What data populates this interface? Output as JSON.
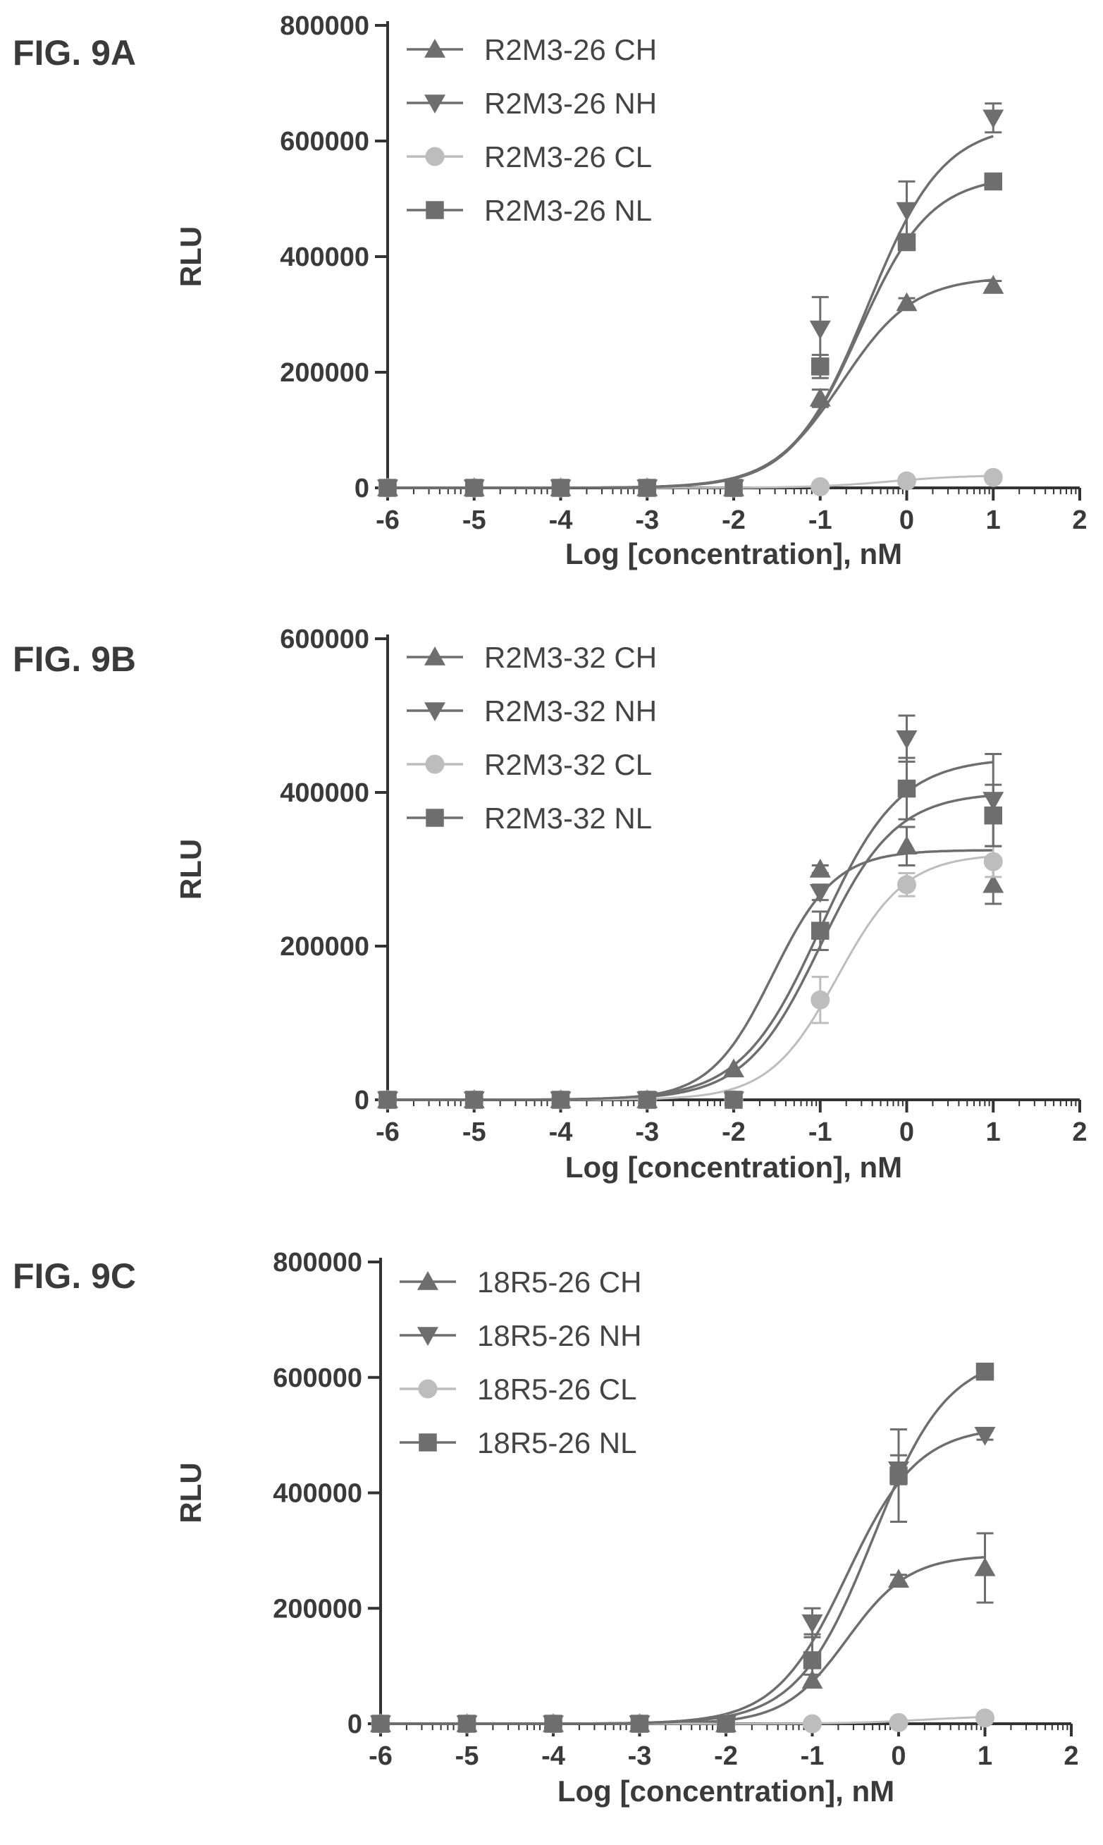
{
  "colors": {
    "axis": "#333333",
    "text": "#3a3a3a",
    "dark_series": "#6e6e6e",
    "light_series": "#bdbdbd"
  },
  "chart_data": [
    {
      "type": "line",
      "panel_label": "FIG. 9A",
      "xlabel": "Log [concentration], nM",
      "ylabel": "RLU",
      "xlim": [
        -6,
        2
      ],
      "ylim": [
        0,
        800000
      ],
      "xticks": [
        "-6",
        "-5",
        "-4",
        "-3",
        "-2",
        "-1",
        "0",
        "1",
        "2"
      ],
      "yticks": [
        "0",
        "200000",
        "400000",
        "600000",
        "800000"
      ],
      "legend_position": "top-left",
      "series": [
        {
          "name": "R2M3-26 CH",
          "marker": "triangle-up",
          "color": "#6e6e6e",
          "x": [
            -6,
            -5,
            -4,
            -3,
            -2,
            -1,
            0,
            1
          ],
          "y": [
            0,
            0,
            0,
            0,
            0,
            155000,
            320000,
            350000
          ],
          "err": [
            0,
            0,
            0,
            0,
            0,
            15000,
            8000,
            8000
          ],
          "fit": {
            "bottom": 0,
            "top": 365000,
            "logec50": -0.75,
            "hill": 1.05
          }
        },
        {
          "name": "R2M3-26 NH",
          "marker": "triangle-down",
          "color": "#6e6e6e",
          "x": [
            -6,
            -5,
            -4,
            -3,
            -2,
            -1,
            0,
            1
          ],
          "y": [
            0,
            0,
            0,
            0,
            0,
            275000,
            480000,
            640000
          ],
          "err": [
            0,
            0,
            0,
            0,
            0,
            55000,
            50000,
            25000
          ],
          "fit": {
            "bottom": 0,
            "top": 630000,
            "logec50": -0.45,
            "hill": 1.0
          }
        },
        {
          "name": "R2M3-26 CL",
          "marker": "circle",
          "color": "#bdbdbd",
          "x": [
            -6,
            -5,
            -4,
            -3,
            -2,
            -1,
            0,
            1
          ],
          "y": [
            0,
            0,
            0,
            0,
            0,
            2000,
            12000,
            18000
          ],
          "err": [
            0,
            0,
            0,
            0,
            0,
            0,
            0,
            0
          ],
          "fit": {
            "bottom": 0,
            "top": 22000,
            "logec50": -0.2,
            "hill": 1.0
          }
        },
        {
          "name": "R2M3-26 NL",
          "marker": "square",
          "color": "#6e6e6e",
          "x": [
            -6,
            -5,
            -4,
            -3,
            -2,
            -1,
            0,
            1
          ],
          "y": [
            0,
            0,
            0,
            0,
            0,
            210000,
            425000,
            530000
          ],
          "err": [
            0,
            0,
            0,
            0,
            0,
            20000,
            8000,
            8000
          ],
          "fit": {
            "bottom": 0,
            "top": 540000,
            "logec50": -0.55,
            "hill": 1.05
          }
        }
      ]
    },
    {
      "type": "line",
      "panel_label": "FIG. 9B",
      "xlabel": "Log [concentration], nM",
      "ylabel": "RLU",
      "xlim": [
        -6,
        2
      ],
      "ylim": [
        0,
        600000
      ],
      "xticks": [
        "-6",
        "-5",
        "-4",
        "-3",
        "-2",
        "-1",
        "0",
        "1",
        "2"
      ],
      "yticks": [
        "0",
        "200000",
        "400000",
        "600000"
      ],
      "legend_position": "top-left",
      "series": [
        {
          "name": "R2M3-32 CH",
          "marker": "triangle-up",
          "color": "#6e6e6e",
          "x": [
            -6,
            -5,
            -4,
            -3,
            -2,
            -1,
            0,
            1
          ],
          "y": [
            0,
            0,
            0,
            0,
            40000,
            300000,
            330000,
            280000
          ],
          "err": [
            0,
            0,
            0,
            0,
            0,
            5000,
            25000,
            25000
          ],
          "fit": {
            "bottom": 0,
            "top": 325000,
            "logec50": -1.55,
            "hill": 1.2
          }
        },
        {
          "name": "R2M3-32 NH",
          "marker": "triangle-down",
          "color": "#6e6e6e",
          "x": [
            -6,
            -5,
            -4,
            -3,
            -2,
            -1,
            0,
            1
          ],
          "y": [
            0,
            0,
            0,
            0,
            0,
            270000,
            470000,
            390000
          ],
          "err": [
            0,
            0,
            0,
            0,
            0,
            10000,
            30000,
            60000
          ],
          "fit": {
            "bottom": 0,
            "top": 400000,
            "logec50": -1.0,
            "hill": 1.0
          }
        },
        {
          "name": "R2M3-32 CL",
          "marker": "circle",
          "color": "#bdbdbd",
          "x": [
            -6,
            -5,
            -4,
            -3,
            -2,
            -1,
            0,
            1
          ],
          "y": [
            0,
            0,
            0,
            0,
            0,
            130000,
            280000,
            310000
          ],
          "err": [
            0,
            0,
            0,
            0,
            0,
            30000,
            15000,
            20000
          ],
          "fit": {
            "bottom": 0,
            "top": 320000,
            "logec50": -0.8,
            "hill": 1.1
          }
        },
        {
          "name": "R2M3-32 NL",
          "marker": "square",
          "color": "#6e6e6e",
          "x": [
            -6,
            -5,
            -4,
            -3,
            -2,
            -1,
            0,
            1
          ],
          "y": [
            0,
            0,
            0,
            0,
            0,
            220000,
            405000,
            370000
          ],
          "err": [
            0,
            0,
            0,
            0,
            0,
            25000,
            40000,
            40000
          ],
          "fit": {
            "bottom": 0,
            "top": 445000,
            "logec50": -1.0,
            "hill": 0.95
          }
        }
      ]
    },
    {
      "type": "line",
      "panel_label": "FIG. 9C",
      "xlabel": "Log [concentration], nM",
      "ylabel": "RLU",
      "xlim": [
        -6,
        2
      ],
      "ylim": [
        0,
        800000
      ],
      "xticks": [
        "-6",
        "-5",
        "-4",
        "-3",
        "-2",
        "-1",
        "0",
        "1",
        "2"
      ],
      "yticks": [
        "0",
        "200000",
        "400000",
        "600000",
        "800000"
      ],
      "legend_position": "top-left",
      "series": [
        {
          "name": "18R5-26 CH",
          "marker": "triangle-up",
          "color": "#6e6e6e",
          "x": [
            -6,
            -5,
            -4,
            -3,
            -2,
            -1,
            0,
            1
          ],
          "y": [
            0,
            0,
            0,
            0,
            0,
            75000,
            250000,
            270000
          ],
          "err": [
            0,
            0,
            0,
            0,
            0,
            10000,
            8000,
            60000
          ],
          "fit": {
            "bottom": 0,
            "top": 292000,
            "logec50": -0.6,
            "hill": 1.2
          }
        },
        {
          "name": "18R5-26 NH",
          "marker": "triangle-down",
          "color": "#6e6e6e",
          "x": [
            -6,
            -5,
            -4,
            -3,
            -2,
            -1,
            0,
            1
          ],
          "y": [
            0,
            0,
            0,
            0,
            0,
            175000,
            440000,
            500000
          ],
          "err": [
            0,
            0,
            0,
            0,
            0,
            25000,
            25000,
            8000
          ],
          "fit": {
            "bottom": 0,
            "top": 515000,
            "logec50": -0.6,
            "hill": 1.05
          }
        },
        {
          "name": "18R5-26 CL",
          "marker": "circle",
          "color": "#bdbdbd",
          "x": [
            -6,
            -5,
            -4,
            -3,
            -2,
            -1,
            0,
            1
          ],
          "y": [
            0,
            0,
            0,
            0,
            0,
            0,
            2000,
            10000
          ],
          "err": [
            0,
            0,
            0,
            0,
            0,
            0,
            0,
            0
          ],
          "fit": {
            "bottom": 0,
            "top": 14000,
            "logec50": 0.3,
            "hill": 1.0
          }
        },
        {
          "name": "18R5-26 NL",
          "marker": "square",
          "color": "#6e6e6e",
          "x": [
            -6,
            -5,
            -4,
            -3,
            -2,
            -1,
            0,
            1
          ],
          "y": [
            0,
            0,
            0,
            0,
            0,
            110000,
            430000,
            610000
          ],
          "err": [
            0,
            0,
            0,
            0,
            0,
            45000,
            80000,
            10000
          ],
          "fit": {
            "bottom": 0,
            "top": 640000,
            "logec50": -0.3,
            "hill": 1.0
          }
        }
      ]
    }
  ]
}
